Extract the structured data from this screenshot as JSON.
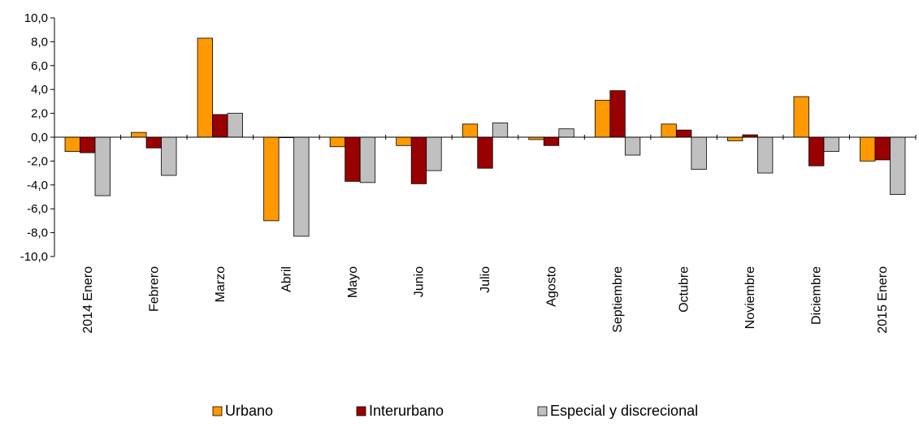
{
  "chart_data": {
    "type": "bar",
    "title": "",
    "xlabel": "",
    "ylabel": "",
    "ylim": [
      -10,
      10
    ],
    "yticks": [
      "10,0",
      "8,0",
      "6,0",
      "4,0",
      "2,0",
      "0,0",
      "-2,0",
      "-4,0",
      "-6,0",
      "-8,0",
      "-10,0"
    ],
    "categories": [
      "2014  Enero",
      "Febrero",
      "Marzo",
      "Abril",
      "Mayo",
      "Junio",
      "Julio",
      "Agosto",
      "Septiembre",
      "Octubre",
      "Noviembre",
      "Diciembre",
      "2015 Enero"
    ],
    "series": [
      {
        "name": "Urbano",
        "color": "#FF9900",
        "values": [
          -1.2,
          0.4,
          8.3,
          -7.0,
          -0.8,
          -0.7,
          1.1,
          -0.2,
          3.1,
          1.1,
          -0.3,
          3.4,
          -2.0
        ]
      },
      {
        "name": "Interurbano",
        "color": "#990000",
        "values": [
          -1.3,
          -0.9,
          1.9,
          0.0,
          -3.7,
          -3.9,
          -2.6,
          -0.7,
          3.9,
          0.6,
          0.2,
          -2.4,
          -1.9
        ]
      },
      {
        "name": "Especial y discrecional",
        "color": "#C0C0C0",
        "values": [
          -4.9,
          -3.2,
          2.0,
          -8.3,
          -3.8,
          -2.8,
          1.2,
          0.7,
          -1.5,
          -2.7,
          -3.0,
          -1.2,
          -4.8
        ]
      }
    ],
    "grid": false,
    "legend_position": "bottom"
  }
}
